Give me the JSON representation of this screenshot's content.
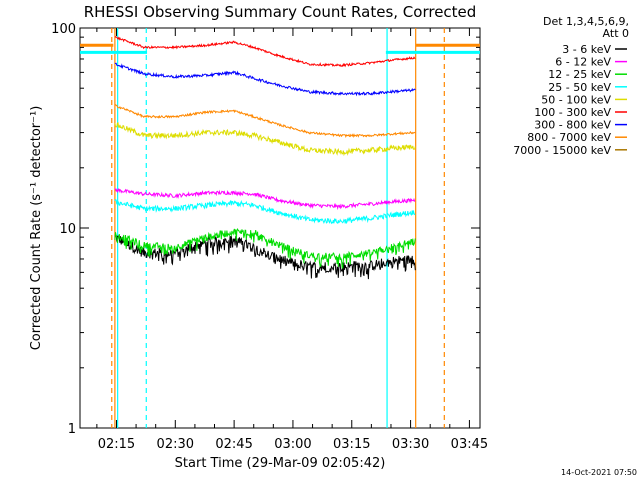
{
  "chart_data": {
    "type": "line",
    "title": "RHESSI Observing Summary Count Rates, Corrected",
    "xlabel": "Start Time (29-Mar-09 02:05:42)",
    "ylabel": "Corrected Count Rate (s⁻¹ detector⁻¹)",
    "y_scale": "log",
    "ylim": [
      1,
      100
    ],
    "xlim_minutes_after_0200": [
      5.7,
      107.7
    ],
    "x_ticks": [
      {
        "label": "02:15",
        "minutes": 15
      },
      {
        "label": "02:30",
        "minutes": 30
      },
      {
        "label": "02:45",
        "minutes": 45
      },
      {
        "label": "03:00",
        "minutes": 60
      },
      {
        "label": "03:15",
        "minutes": 75
      },
      {
        "label": "03:30",
        "minutes": 90
      },
      {
        "label": "03:45",
        "minutes": 105
      }
    ],
    "y_ticks": [
      {
        "label": "1",
        "value": 1
      },
      {
        "label": "10",
        "value": 10
      },
      {
        "label": "100",
        "value": 100
      }
    ],
    "legend": {
      "header_lines": [
        "Det 1,3,4,5,6,9,",
        "Att 0"
      ],
      "placement": "right"
    },
    "footer_timestamp": "14-Oct-2021 07:50",
    "data_window_minutes": [
      14.6,
      91.2
    ],
    "series": [
      {
        "name": "3 - 6 keV",
        "color": "#000000",
        "noise": 0.06,
        "points": [
          [
            14.6,
            9.0
          ],
          [
            22,
            7.5
          ],
          [
            30,
            7.5
          ],
          [
            38,
            8.5
          ],
          [
            45,
            8.7
          ],
          [
            50,
            8.0
          ],
          [
            56,
            7.0
          ],
          [
            64,
            6.4
          ],
          [
            72,
            6.4
          ],
          [
            80,
            6.5
          ],
          [
            85,
            6.8
          ],
          [
            91.2,
            7.0
          ]
        ]
      },
      {
        "name": "6 - 12 keV",
        "color": "#ff00ff",
        "noise": 0.02,
        "points": [
          [
            14.6,
            15.5
          ],
          [
            22,
            14.8
          ],
          [
            30,
            14.5
          ],
          [
            38,
            15.0
          ],
          [
            45,
            15.0
          ],
          [
            50,
            14.8
          ],
          [
            56,
            13.8
          ],
          [
            64,
            13.0
          ],
          [
            72,
            12.8
          ],
          [
            80,
            13.2
          ],
          [
            85,
            13.5
          ],
          [
            91.2,
            13.8
          ]
        ]
      },
      {
        "name": "12 - 25 keV",
        "color": "#00dd00",
        "noise": 0.04,
        "points": [
          [
            14.6,
            9.3
          ],
          [
            22,
            8.2
          ],
          [
            30,
            8.0
          ],
          [
            38,
            9.0
          ],
          [
            45,
            9.6
          ],
          [
            50,
            9.5
          ],
          [
            56,
            8.3
          ],
          [
            64,
            7.3
          ],
          [
            72,
            7.2
          ],
          [
            80,
            7.5
          ],
          [
            85,
            8.0
          ],
          [
            91.2,
            8.6
          ]
        ]
      },
      {
        "name": "25 - 50 keV",
        "color": "#00ffff",
        "noise": 0.03,
        "points": [
          [
            14.6,
            13.5
          ],
          [
            22,
            12.5
          ],
          [
            30,
            12.5
          ],
          [
            38,
            13.0
          ],
          [
            45,
            13.3
          ],
          [
            50,
            13.0
          ],
          [
            56,
            12.0
          ],
          [
            64,
            11.0
          ],
          [
            72,
            10.8
          ],
          [
            80,
            11.2
          ],
          [
            85,
            11.6
          ],
          [
            91.2,
            12.0
          ]
        ]
      },
      {
        "name": "50 - 100 keV",
        "color": "#dddd00",
        "noise": 0.03,
        "points": [
          [
            14.6,
            33
          ],
          [
            22,
            29
          ],
          [
            30,
            29
          ],
          [
            38,
            30
          ],
          [
            45,
            30
          ],
          [
            50,
            29
          ],
          [
            56,
            27
          ],
          [
            64,
            24.5
          ],
          [
            72,
            24
          ],
          [
            80,
            24.5
          ],
          [
            85,
            25
          ],
          [
            91.2,
            25.5
          ]
        ]
      },
      {
        "name": "100 - 300 keV",
        "color": "#ff0000",
        "noise": 0.012,
        "points": [
          [
            14.6,
            90
          ],
          [
            22,
            80
          ],
          [
            30,
            80
          ],
          [
            38,
            82
          ],
          [
            45,
            85
          ],
          [
            50,
            80
          ],
          [
            56,
            73
          ],
          [
            64,
            66
          ],
          [
            72,
            65
          ],
          [
            80,
            67
          ],
          [
            85,
            69
          ],
          [
            91.2,
            71
          ]
        ]
      },
      {
        "name": "300 - 800 keV",
        "color": "#0000ff",
        "noise": 0.015,
        "points": [
          [
            14.6,
            66
          ],
          [
            22,
            59
          ],
          [
            30,
            57
          ],
          [
            38,
            58
          ],
          [
            45,
            60
          ],
          [
            50,
            56
          ],
          [
            56,
            52
          ],
          [
            64,
            48
          ],
          [
            72,
            47
          ],
          [
            80,
            47
          ],
          [
            85,
            48
          ],
          [
            91.2,
            49
          ]
        ]
      },
      {
        "name": "800 - 7000 keV",
        "color": "#ff8800",
        "noise": 0.012,
        "points": [
          [
            14.6,
            41
          ],
          [
            22,
            36
          ],
          [
            30,
            36
          ],
          [
            38,
            38
          ],
          [
            45,
            38.5
          ],
          [
            50,
            36
          ],
          [
            56,
            33
          ],
          [
            64,
            30
          ],
          [
            72,
            29
          ],
          [
            80,
            29
          ],
          [
            85,
            29.5
          ],
          [
            91.2,
            30
          ]
        ]
      },
      {
        "name": "7000 - 15000 keV",
        "color": "#aa7700",
        "noise": 0,
        "points": []
      }
    ],
    "flag_lines": [
      {
        "color": "#ff8800",
        "value": 82,
        "segments": [
          [
            5.7,
            14.2
          ],
          [
            91.4,
            107.7
          ]
        ]
      },
      {
        "color": "#00ffff",
        "value": 75.5,
        "segments": [
          [
            5.7,
            22.8
          ],
          [
            83.7,
            107.7
          ]
        ]
      }
    ],
    "vertical_markers": [
      {
        "color": "#ff8800",
        "style": "dashed",
        "minutes": 13.8
      },
      {
        "color": "#ff8800",
        "style": "solid",
        "minutes": 14.6
      },
      {
        "color": "#00ffff",
        "style": "solid",
        "minutes": 15.3
      },
      {
        "color": "#00ffff",
        "style": "dashed",
        "minutes": 22.6
      },
      {
        "color": "#00ffff",
        "style": "solid",
        "minutes": 84.0
      },
      {
        "color": "#ff8800",
        "style": "solid",
        "minutes": 91.3
      },
      {
        "color": "#ff8800",
        "style": "dashed",
        "minutes": 98.6
      }
    ]
  }
}
